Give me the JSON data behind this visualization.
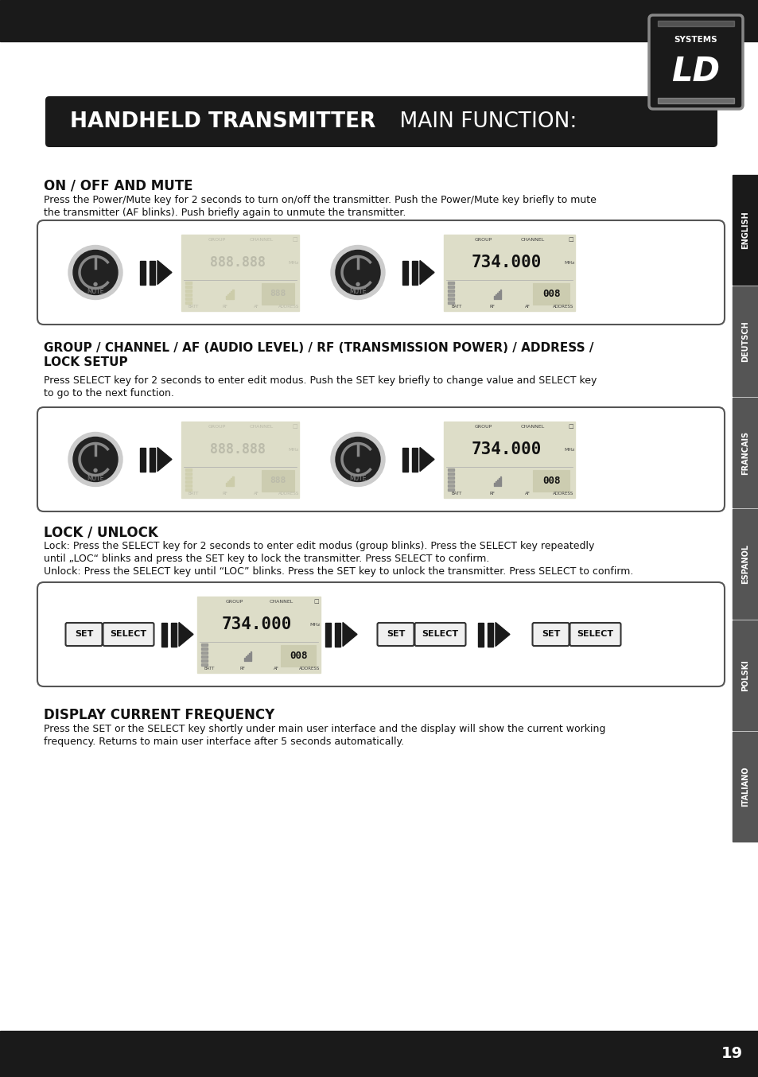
{
  "bg_color": "#ffffff",
  "header_color": "#1a1a1a",
  "footer_color": "#1a1a1a",
  "title_box_color": "#1a1a1a",
  "title_bold": "HANDHELD TRANSMITTER",
  "title_light": " MAIN FUNCTION:",
  "sidebar_labels": [
    "ENGLISH",
    "DEUTSCH",
    "FRANCAIS",
    "ESPANOL",
    "POLSKI",
    "ITALIANO"
  ],
  "page_number": "19",
  "section1_title": "ON / OFF AND MUTE",
  "section1_text1": "Press the Power/Mute key for 2 seconds to turn on/off the transmitter. Push the Power/Mute key briefly to mute",
  "section1_text2": "the transmitter (AF blinks). Push briefly again to unmute the transmitter.",
  "section2_title1": "GROUP / CHANNEL / AF (AUDIO LEVEL) / RF (TRANSMISSION POWER) / ADDRESS /",
  "section2_title2": "LOCK SETUP",
  "section2_text1": "Press SELECT key for 2 seconds to enter edit modus. Push the SET key briefly to change value and SELECT key",
  "section2_text2": "to go to the next function.",
  "section3_title": "LOCK / UNLOCK",
  "section3_text1": "Lock: Press the SELECT key for 2 seconds to enter edit modus (group blinks). Press the SELECT key repeatedly",
  "section3_text2": "until „LOC“ blinks and press the SET key to lock the transmitter. Press SELECT to confirm.",
  "section3_text3": "Unlock: Press the SELECT key until “LOC” blinks. Press the SET key to unlock the transmitter. Press SELECT to confirm.",
  "section4_title": "DISPLAY CURRENT FREQUENCY",
  "section4_text1": "Press the SET or the SELECT key shortly under main user interface and the display will show the current working",
  "section4_text2": "frequency. Returns to main user interface after 5 seconds automatically."
}
